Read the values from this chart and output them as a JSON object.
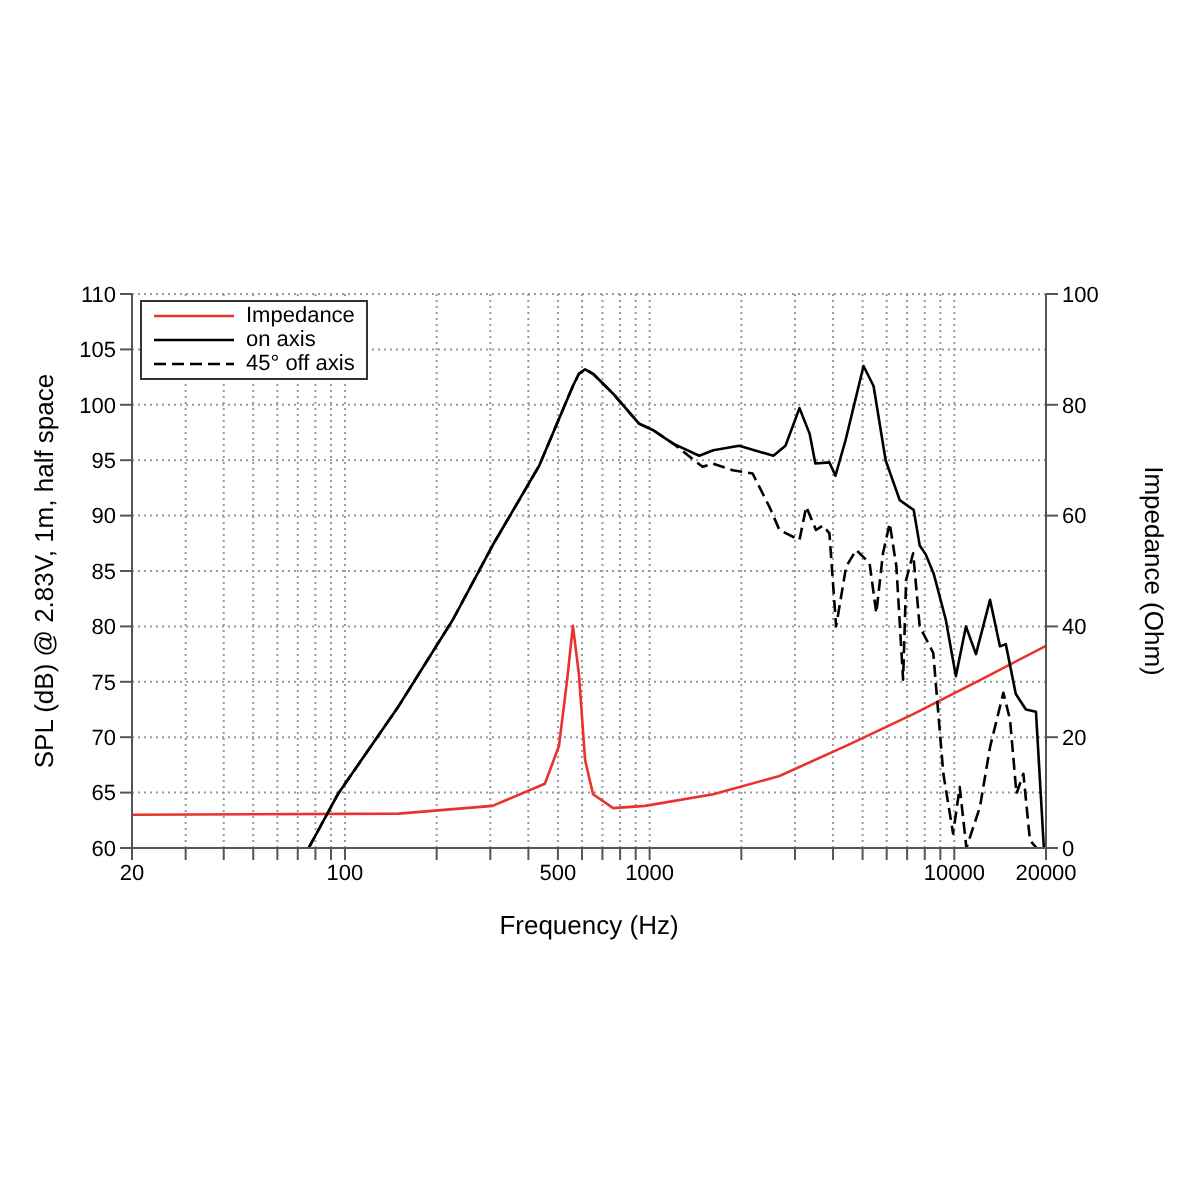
{
  "chart_data": {
    "type": "line",
    "xlabel": "Frequency (Hz)",
    "ylabel": "SPL (dB) @ 2.83V, 1m, half space",
    "y2label": "Impedance (Ohm)",
    "log": "x",
    "grid": true,
    "legend": "top left",
    "line_style": "solid",
    "marker": "none",
    "xlim": [
      20,
      20000
    ],
    "xticks": [
      20,
      {
        "value": 30,
        "label": null
      },
      {
        "value": 40,
        "label": null
      },
      {
        "value": 50,
        "label": null
      },
      {
        "value": 60,
        "label": null
      },
      {
        "value": 70,
        "label": null
      },
      {
        "value": 80,
        "label": null
      },
      {
        "value": 90,
        "label": null
      },
      100,
      {
        "value": 200,
        "label": null
      },
      {
        "value": 300,
        "label": null
      },
      {
        "value": 400,
        "label": null
      },
      500,
      {
        "value": 600,
        "label": null
      },
      {
        "value": 700,
        "label": null
      },
      {
        "value": 800,
        "label": null
      },
      {
        "value": 900,
        "label": null
      },
      1000,
      {
        "value": 2000,
        "label": null
      },
      {
        "value": 3000,
        "label": null
      },
      {
        "value": 4000,
        "label": null
      },
      {
        "value": 5000,
        "label": null
      },
      {
        "value": 6000,
        "label": null
      },
      {
        "value": 7000,
        "label": null
      },
      {
        "value": 8000,
        "label": null
      },
      {
        "value": 9000,
        "label": null
      },
      10000,
      20000
    ],
    "ylim": [
      60,
      110
    ],
    "yticks": [
      60,
      65,
      70,
      75,
      80,
      85,
      90,
      95,
      100,
      105,
      110
    ],
    "y2lim": [
      0,
      100
    ],
    "y2ticks": [
      0,
      20,
      40,
      60,
      80,
      100
    ],
    "series": [
      {
        "name": "Impedance",
        "color": "#e8322b",
        "axis": "y2",
        "x": [
          20,
          150,
          305,
          453,
          504,
          536,
          560,
          586,
          614,
          652,
          759,
          966,
          1618,
          2668,
          4396,
          7360,
          12140,
          20000
        ],
        "values": [
          6.0,
          6.2,
          7.6,
          11.6,
          18.4,
          30.3,
          40.1,
          31.4,
          15.9,
          9.7,
          7.2,
          7.6,
          9.7,
          13.0,
          18.4,
          24.2,
          30.3,
          36.5
        ]
      },
      {
        "name": "on axis",
        "color": "#000000",
        "x": [
          76,
          95,
          150,
          226,
          305,
          434,
          560,
          586,
          614,
          652,
          759,
          923,
          1028,
          1194,
          1455,
          1618,
          1968,
          2548,
          2792,
          3104,
          3350,
          3500,
          3892,
          4074,
          4396,
          5036,
          5433,
          5952,
          6620,
          7360,
          7700,
          8060,
          8570,
          9380,
          10120,
          10920,
          11780,
          13100,
          14120,
          14760,
          15920,
          17180,
          18540,
          19680
        ],
        "values": [
          60,
          64.9,
          72.8,
          80.6,
          87.3,
          94.5,
          101.7,
          102.8,
          103.2,
          102.8,
          101.0,
          98.3,
          97.7,
          96.5,
          95.4,
          95.9,
          96.3,
          95.4,
          96.3,
          99.7,
          97.4,
          94.7,
          94.8,
          93.6,
          96.8,
          103.5,
          101.7,
          95.0,
          91.4,
          90.5,
          87.3,
          86.5,
          84.7,
          80.6,
          75.5,
          80.0,
          77.5,
          82.4,
          78.2,
          78.4,
          73.9,
          72.5,
          72.3,
          60
        ]
      },
      {
        "name": "45° off axis",
        "color": "#000000",
        "line_style": "dashed",
        "x": [
          76,
          95,
          150,
          226,
          305,
          434,
          560,
          586,
          614,
          652,
          759,
          923,
          1028,
          1194,
          1492,
          1610,
          1874,
          2178,
          2472,
          2668,
          3104,
          3266,
          3516,
          3706,
          3892,
          4094,
          4416,
          4764,
          5272,
          5546,
          5834,
          6138,
          6456,
          6792,
          6950,
          7328,
          7700,
          8532,
          9206,
          9910,
          10420,
          10960,
          12140,
          13100,
          14490,
          15240,
          16000,
          16860,
          17710,
          18620
        ],
        "values": [
          60,
          64.9,
          72.8,
          80.6,
          87.3,
          94.5,
          101.7,
          102.8,
          103.2,
          102.8,
          101.0,
          98.3,
          97.7,
          96.5,
          94.4,
          94.7,
          94.1,
          93.8,
          90.8,
          88.7,
          87.8,
          90.8,
          88.7,
          89.1,
          88.4,
          80.0,
          85.4,
          86.9,
          85.7,
          81.2,
          86.6,
          89.3,
          85.4,
          75.2,
          84.2,
          86.6,
          80.0,
          77.6,
          66.7,
          61.3,
          65.5,
          60,
          63.7,
          69.1,
          74.0,
          71.6,
          64.9,
          66.7,
          60.7,
          60
        ]
      }
    ]
  }
}
